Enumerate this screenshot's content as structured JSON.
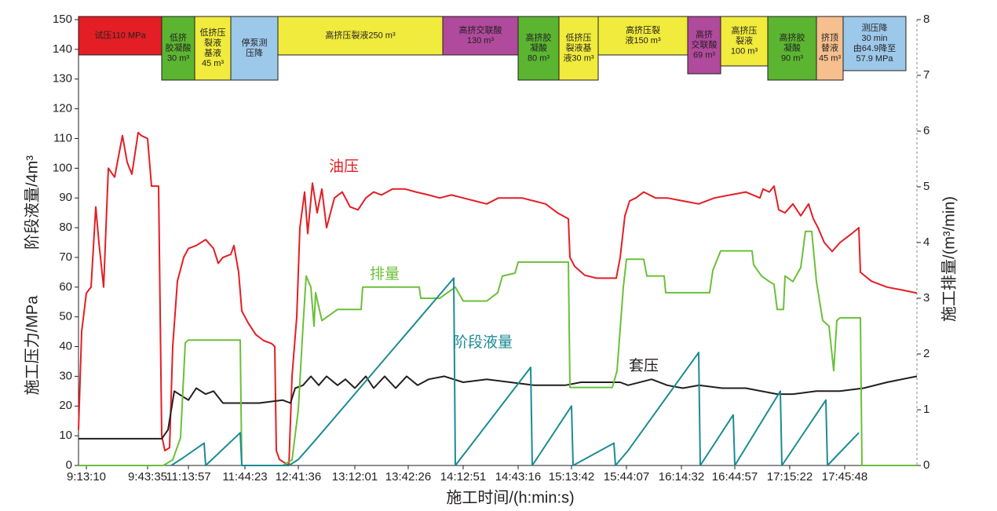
{
  "chart_data": {
    "type": "line",
    "xlabel": "施工时间/(h:min:s)",
    "ylabel": [
      "施工压力/MPa",
      "阶段液量/4m³"
    ],
    "y2label": "施工排量/(m³/min)",
    "xlim": [
      100,
      1168
    ],
    "xticks": [
      {
        "value": 110,
        "label": "9:13:10"
      },
      {
        "value": 188,
        "label": "9:43:35"
      },
      {
        "value": 240,
        "label": "11:13:57"
      },
      {
        "value": 312,
        "label": "11:44:23"
      },
      {
        "value": 380,
        "label": "12:41:36"
      },
      {
        "value": 452,
        "label": "13:12:01"
      },
      {
        "value": 520,
        "label": "13:42:26"
      },
      {
        "value": 590,
        "label": "14:12:51"
      },
      {
        "value": 660,
        "label": "14:43:16"
      },
      {
        "value": 728,
        "label": "15:13:42"
      },
      {
        "value": 798,
        "label": "15:44:07"
      },
      {
        "value": 868,
        "label": "16:14:32"
      },
      {
        "value": 936,
        "label": "16:44:57"
      },
      {
        "value": 1006,
        "label": "17:15:22"
      },
      {
        "value": 1076,
        "label": "17:45:48"
      }
    ],
    "ylim": [
      0,
      150
    ],
    "yticks": [
      0,
      10,
      20,
      30,
      40,
      50,
      60,
      70,
      80,
      90,
      100,
      110,
      120,
      130,
      140,
      150
    ],
    "y2lim": [
      0,
      8
    ],
    "y2ticks": [
      0,
      1,
      2,
      3,
      4,
      5,
      6,
      7,
      8
    ],
    "series": [
      {
        "name": "油压",
        "color": "#e31e24",
        "x": [
          100,
          104,
          110,
          116,
          122,
          126,
          132,
          138,
          146,
          156,
          162,
          168,
          176,
          180,
          188,
          193,
          202,
          206,
          210,
          216,
          220,
          226,
          234,
          240,
          250,
          262,
          272,
          278,
          284,
          294,
          298,
          304,
          308,
          316,
          326,
          336,
          346,
          350,
          352,
          356,
          362,
          368,
          372,
          378,
          382,
          388,
          392,
          398,
          404,
          410,
          416,
          426,
          436,
          446,
          456,
          466,
          476,
          486,
          500,
          516,
          530,
          546,
          560,
          575,
          590,
          605,
          620,
          635,
          650,
          665,
          680,
          695,
          710,
          724,
          726,
          732,
          745,
          760,
          785,
          790,
          796,
          802,
          810,
          820,
          835,
          850,
          870,
          890,
          910,
          930,
          950,
          968,
          972,
          980,
          986,
          992,
          1000,
          1010,
          1020,
          1030,
          1036,
          1042,
          1050,
          1060,
          1070,
          1085,
          1094,
          1096,
          1110,
          1130,
          1150,
          1168
        ],
        "values": [
          12,
          45,
          58,
          60,
          87,
          75,
          60,
          100,
          97,
          111,
          102,
          98,
          112,
          111,
          110,
          94,
          94,
          10,
          5,
          6,
          40,
          62,
          70,
          73,
          74,
          76,
          73,
          68,
          70,
          71,
          74,
          65,
          52,
          48,
          44,
          42,
          41,
          40,
          5,
          2,
          1,
          0,
          30,
          50,
          80,
          92,
          78,
          95,
          85,
          93,
          80,
          90,
          92,
          87,
          86,
          90,
          92,
          91,
          93,
          93,
          92,
          91,
          90,
          91,
          90,
          89,
          88,
          90,
          90,
          90,
          89,
          88,
          85,
          83,
          70,
          67,
          64,
          63,
          63,
          70,
          84,
          89,
          90,
          92,
          90,
          90,
          89,
          88,
          90,
          91,
          92,
          90,
          93,
          92,
          94,
          86,
          85,
          88,
          84,
          88,
          83,
          80,
          75,
          72,
          75,
          78,
          80,
          65,
          62,
          60,
          59,
          58
        ]
      },
      {
        "name": "套压",
        "color": "#231f20",
        "x": [
          100,
          206,
          214,
          222,
          240,
          250,
          262,
          272,
          284,
          300,
          330,
          360,
          370,
          376,
          386,
          396,
          406,
          416,
          430,
          440,
          452,
          466,
          476,
          490,
          504,
          518,
          532,
          546,
          566,
          590,
          620,
          650,
          680,
          720,
          740,
          770,
          790,
          800,
          830,
          850,
          870,
          890,
          920,
          950,
          990,
          1010,
          1040,
          1070,
          1100,
          1130,
          1168
        ],
        "values": [
          9,
          9,
          12,
          25,
          22,
          26,
          24,
          25,
          21,
          21,
          21,
          22,
          21,
          26,
          27,
          30,
          27,
          30,
          27,
          29,
          26,
          30,
          26,
          30,
          26,
          30,
          27,
          29,
          30,
          28,
          29,
          28,
          27,
          27,
          28,
          28,
          28,
          27,
          29,
          27,
          26,
          27,
          26,
          26,
          24,
          24,
          25,
          25,
          26,
          28,
          30
        ]
      },
      {
        "name": "排量",
        "color": "#6cbf3a",
        "axis": "y2",
        "x": [
          100,
          208,
          220,
          230,
          236,
          240,
          300,
          306,
          308,
          360,
          372,
          380,
          386,
          390,
          396,
          400,
          402,
          410,
          420,
          430,
          440,
          460,
          462,
          500,
          534,
          536,
          560,
          580,
          590,
          620,
          634,
          640,
          656,
          660,
          724,
          726,
          740,
          780,
          786,
          794,
          798,
          820,
          824,
          846,
          848,
          904,
          908,
          918,
          958,
          960,
          970,
          980,
          986,
          990,
          998,
          1000,
          1010,
          1020,
          1026,
          1034,
          1040,
          1048,
          1056,
          1062,
          1066,
          1070,
          1096,
          1098,
          1168
        ],
        "values": [
          0,
          0,
          0.1,
          0.5,
          2.2,
          2.25,
          2.25,
          2.25,
          0,
          0,
          0.1,
          1,
          2.5,
          3.4,
          3.2,
          2.5,
          3.1,
          2.6,
          2.7,
          2.8,
          2.8,
          2.8,
          3.2,
          3.2,
          3.2,
          3,
          3,
          3.2,
          2.95,
          2.95,
          3.1,
          3.4,
          3.45,
          3.65,
          3.65,
          1.4,
          1.4,
          1.4,
          1.7,
          3.2,
          3.7,
          3.7,
          3.4,
          3.4,
          3.1,
          3.1,
          3.5,
          3.85,
          3.85,
          3.6,
          3.4,
          3.3,
          3.25,
          2.8,
          2.8,
          3.4,
          3.3,
          3.55,
          4.2,
          4.2,
          3.3,
          2.6,
          2.5,
          1.7,
          2.6,
          2.65,
          2.65,
          0,
          0
        ]
      },
      {
        "name": "阶段液量",
        "color": "#1c8b94",
        "x": [
          218,
          230,
          260,
          262,
          306,
          308,
          368,
          380,
          400,
          578,
          580,
          676,
          678,
          728,
          730,
          782,
          784,
          800,
          890,
          892,
          934,
          936,
          994,
          996,
          1052,
          1054,
          1094
        ],
        "values": [
          0,
          2,
          7.5,
          0,
          11,
          0,
          0,
          2,
          8,
          63,
          0,
          33,
          0,
          20,
          0,
          7.5,
          0,
          5,
          38,
          0,
          17,
          0,
          25,
          0,
          22,
          0,
          11
        ]
      }
    ],
    "stages": [
      {
        "label": [
          "试压110 MPa"
        ],
        "color": "#e31e24",
        "xrange": [
          100,
          206
        ]
      },
      {
        "label": [
          "低挤",
          "胶凝酸",
          "30 m³"
        ],
        "color": "#5bb531",
        "xrange": [
          206,
          248
        ]
      },
      {
        "label": [
          "低挤压",
          "裂液",
          "基液",
          "45 m³"
        ],
        "color": "#f0eb3c",
        "xrange": [
          248,
          294
        ]
      },
      {
        "label": [
          "停泵测",
          "压降"
        ],
        "color": "#9cc8ea",
        "xrange": [
          294,
          354
        ]
      },
      {
        "label": [
          "高挤压裂液250 m³"
        ],
        "color": "#f0eb3c",
        "xrange": [
          354,
          564
        ]
      },
      {
        "label": [
          "高挤交联酸",
          "130 m³"
        ],
        "color": "#b04a9c",
        "xrange": [
          564,
          660
        ]
      },
      {
        "label": [
          "高挤胶",
          "凝酸",
          "80 m³"
        ],
        "color": "#5bb531",
        "xrange": [
          660,
          712
        ]
      },
      {
        "label": [
          "低挤压",
          "裂液基",
          "液30 m³"
        ],
        "color": "#f0eb3c",
        "xrange": [
          712,
          762
        ]
      },
      {
        "label": [
          "高挤压裂",
          "液150 m³"
        ],
        "color": "#f0eb3c",
        "xrange": [
          762,
          876
        ]
      },
      {
        "label": [
          "高挤",
          "交联酸",
          "69 m³"
        ],
        "color": "#b04a9c",
        "xrange": [
          876,
          918
        ]
      },
      {
        "label": [
          "高挤压",
          "裂液",
          "100 m³"
        ],
        "color": "#f0eb3c",
        "xrange": [
          918,
          978
        ]
      },
      {
        "label": [
          "高挤胶",
          "凝酸",
          "90 m³"
        ],
        "color": "#5bb531",
        "xrange": [
          978,
          1040
        ]
      },
      {
        "label": [
          "挤顶",
          "替液",
          "45 m³"
        ],
        "color": "#f5bf8e",
        "xrange": [
          1040,
          1074
        ]
      },
      {
        "label": [
          "测压降",
          "30 min",
          "由64.9降至",
          "57.9 MPa"
        ],
        "color": "#9cc8ea",
        "xrange": [
          1074,
          1154
        ]
      }
    ]
  }
}
